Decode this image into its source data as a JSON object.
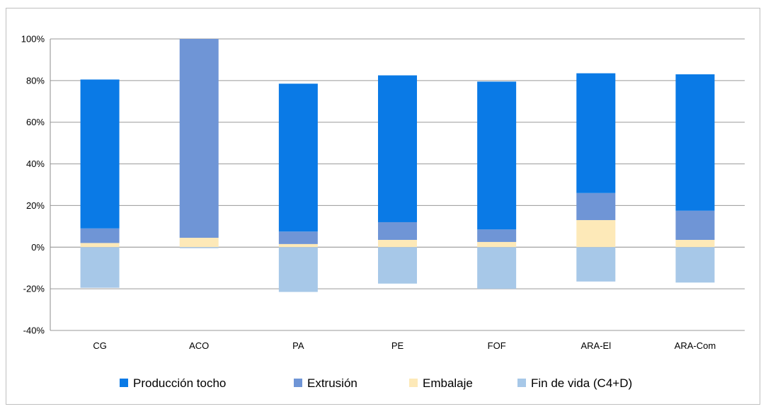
{
  "chart_data": {
    "type": "bar",
    "stacked": true,
    "categories": [
      "CG",
      "ACO",
      "PA",
      "PE",
      "FOF",
      "ARA-El",
      "ARA-Com"
    ],
    "series": [
      {
        "name": "Producción tocho",
        "color": "#0a7ae6",
        "values": [
          71.5,
          0,
          71,
          70.5,
          71,
          57.5,
          65.5
        ]
      },
      {
        "name": "Extrusión",
        "color": "#6f95d6",
        "values": [
          7,
          95.5,
          6,
          8.5,
          6,
          13,
          14
        ]
      },
      {
        "name": "Embalaje",
        "color": "#fde9b8",
        "values": [
          2,
          4.5,
          1.5,
          3.5,
          2.5,
          13,
          3.5
        ]
      },
      {
        "name": "Fin de vida (C4+D)",
        "color": "#a7c8e8",
        "values": [
          -19.5,
          -0.5,
          -21.5,
          -17.5,
          -20,
          -16.5,
          -17
        ]
      }
    ],
    "yticks": [
      "100%",
      "80%",
      "60%",
      "40%",
      "20%",
      "0%",
      "-20%",
      "-40%"
    ],
    "ylim": [
      -40,
      100
    ],
    "grid": true,
    "legend_position": "bottom"
  }
}
